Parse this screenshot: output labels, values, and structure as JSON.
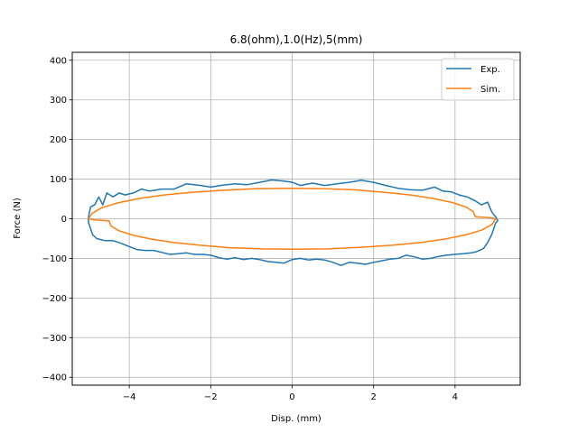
{
  "chart_data": {
    "type": "line",
    "title": "6.8(ohm),1.0(Hz),5(mm)",
    "xlabel": "Disp. (mm)",
    "ylabel": "Force (N)",
    "xlim": [
      -5.4,
      5.6
    ],
    "ylim": [
      -420,
      420
    ],
    "xticks": [
      -4,
      -2,
      0,
      2,
      4
    ],
    "yticks": [
      -400,
      -300,
      -200,
      -100,
      0,
      100,
      200,
      300,
      400
    ],
    "xtick_labels": [
      "−4",
      "−2",
      "0",
      "2",
      "4"
    ],
    "ytick_labels": [
      "−400",
      "−300",
      "−200",
      "−100",
      "0",
      "100",
      "200",
      "300",
      "400"
    ],
    "grid": true,
    "legend_position": "top-right",
    "series": [
      {
        "name": "Exp.",
        "color": "#1f77b4",
        "x": [
          -4.4,
          -4.6,
          -4.8,
          -4.9,
          -4.95,
          -5.0,
          -5.0,
          -4.95,
          -4.85,
          -4.75,
          -4.65,
          -4.55,
          -4.4,
          -4.25,
          -4.1,
          -3.9,
          -3.7,
          -3.5,
          -3.2,
          -2.9,
          -2.6,
          -2.3,
          -2.0,
          -1.7,
          -1.4,
          -1.1,
          -0.8,
          -0.5,
          -0.2,
          0.0,
          0.2,
          0.5,
          0.8,
          1.1,
          1.4,
          1.7,
          2.0,
          2.3,
          2.6,
          2.9,
          3.2,
          3.5,
          3.7,
          3.9,
          4.1,
          4.3,
          4.5,
          4.65,
          4.8,
          4.9,
          4.95,
          5.0,
          5.05,
          5.0,
          4.95,
          4.9,
          4.8,
          4.7,
          4.6,
          4.5,
          4.4,
          4.2,
          4.0,
          3.8,
          3.6,
          3.4,
          3.2,
          3.0,
          2.8,
          2.6,
          2.4,
          2.2,
          2.0,
          1.8,
          1.6,
          1.4,
          1.2,
          1.0,
          0.8,
          0.6,
          0.4,
          0.2,
          0.0,
          -0.2,
          -0.4,
          -0.6,
          -0.8,
          -1.0,
          -1.2,
          -1.4,
          -1.6,
          -1.8,
          -2.0,
          -2.2,
          -2.4,
          -2.6,
          -2.8,
          -3.0,
          -3.2,
          -3.4,
          -3.6,
          -3.8,
          -4.0,
          -4.2,
          -4.4
        ],
        "y": [
          -55,
          -55,
          -50,
          -40,
          -25,
          -10,
          5,
          30,
          35,
          55,
          35,
          65,
          55,
          65,
          60,
          65,
          75,
          70,
          75,
          75,
          88,
          85,
          80,
          85,
          88,
          86,
          92,
          98,
          95,
          92,
          84,
          90,
          84,
          88,
          92,
          97,
          92,
          84,
          77,
          73,
          72,
          80,
          70,
          68,
          60,
          55,
          45,
          35,
          42,
          18,
          10,
          5,
          -5,
          -10,
          -25,
          -40,
          -60,
          -75,
          -80,
          -84,
          -86,
          -88,
          -90,
          -92,
          -95,
          -100,
          -102,
          -96,
          -92,
          -100,
          -102,
          -106,
          -110,
          -115,
          -112,
          -110,
          -118,
          -110,
          -104,
          -102,
          -104,
          -100,
          -103,
          -112,
          -110,
          -108,
          -103,
          -100,
          -103,
          -98,
          -102,
          -98,
          -92,
          -90,
          -90,
          -86,
          -88,
          -90,
          -85,
          -80,
          -80,
          -78,
          -70,
          -62,
          -55
        ]
      },
      {
        "name": "Sim.",
        "color": "#ff7f0e",
        "x": [
          -5.0,
          -4.91,
          -4.67,
          -4.28,
          -3.77,
          -3.15,
          -2.45,
          -1.69,
          -0.89,
          -0.08,
          0.73,
          1.52,
          2.25,
          2.91,
          3.48,
          3.93,
          4.26,
          4.45,
          4.5,
          4.85,
          5.0,
          5.0,
          4.91,
          4.67,
          4.28,
          3.77,
          3.15,
          2.45,
          1.69,
          0.89,
          0.08,
          -0.73,
          -1.52,
          -2.25,
          -2.91,
          -3.48,
          -3.93,
          -4.26,
          -4.45,
          -4.5,
          -4.85,
          -5.0
        ],
        "y": [
          0,
          14,
          28,
          40,
          51,
          60,
          67,
          72,
          76,
          77,
          76,
          73,
          67,
          60,
          51,
          41,
          30,
          18,
          5,
          3,
          0,
          0,
          -14,
          -28,
          -40,
          -51,
          -60,
          -67,
          -72,
          -76,
          -77,
          -76,
          -73,
          -67,
          -60,
          -51,
          -41,
          -30,
          -18,
          -5,
          -3,
          0
        ]
      }
    ]
  }
}
